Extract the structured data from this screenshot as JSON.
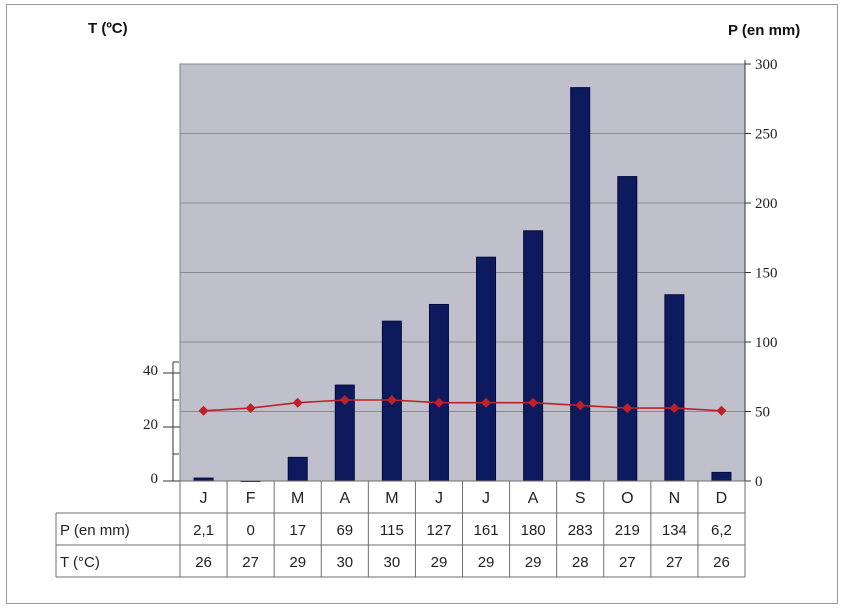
{
  "chart_data": {
    "type": "bar+line",
    "categories": [
      "J",
      "F",
      "M",
      "A",
      "M",
      "J",
      "J",
      "A",
      "S",
      "O",
      "N",
      "D"
    ],
    "precipitation": {
      "axis": "right",
      "values": [
        2.1,
        0,
        17,
        69,
        115,
        127,
        161,
        180,
        283,
        219,
        134,
        6.2
      ],
      "labels": [
        "2,1",
        "0",
        "17",
        "69",
        "115",
        "127",
        "161",
        "180",
        "283",
        "219",
        "134",
        "6,2"
      ],
      "color": "#0d1a5e"
    },
    "temperature": {
      "axis": "left",
      "values": [
        26,
        27,
        29,
        30,
        30,
        29,
        29,
        29,
        28,
        27,
        27,
        26
      ],
      "color": "#c0202a"
    },
    "left_axis": {
      "title": "T (ºC)",
      "ticks": [
        0,
        20,
        40
      ],
      "range": [
        0,
        40
      ]
    },
    "right_axis": {
      "title": "P (en mm)",
      "ticks": [
        0,
        50,
        100,
        150,
        200,
        250,
        300
      ],
      "range": [
        0,
        300
      ]
    },
    "table": {
      "row_labels": [
        "P (en mm)",
        "T (°C)"
      ],
      "temp_labels": [
        "26",
        "27",
        "29",
        "30",
        "30",
        "29",
        "29",
        "29",
        "28",
        "27",
        "27",
        "26"
      ]
    },
    "grid": true,
    "plot_background": "#c0c0cc"
  }
}
